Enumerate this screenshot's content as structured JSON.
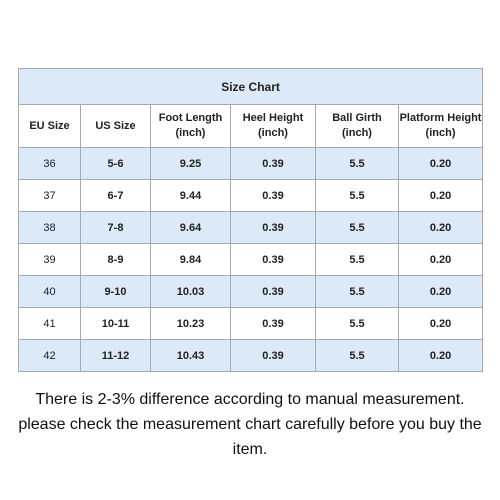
{
  "table": {
    "title": "Size Chart",
    "columns": [
      "EU Size",
      "US Size",
      "Foot Length\n(inch)",
      "Heel Height\n(inch)",
      "Ball Girth\n(inch)",
      "Platform Height\n(inch)"
    ],
    "rows": [
      [
        "36",
        "5-6",
        "9.25",
        "0.39",
        "5.5",
        "0.20"
      ],
      [
        "37",
        "6-7",
        "9.44",
        "0.39",
        "5.5",
        "0.20"
      ],
      [
        "38",
        "7-8",
        "9.64",
        "0.39",
        "5.5",
        "0.20"
      ],
      [
        "39",
        "8-9",
        "9.84",
        "0.39",
        "5.5",
        "0.20"
      ],
      [
        "40",
        "9-10",
        "10.03",
        "0.39",
        "5.5",
        "0.20"
      ],
      [
        "41",
        "10-11",
        "10.23",
        "0.39",
        "5.5",
        "0.20"
      ],
      [
        "42",
        "11-12",
        "10.43",
        "0.39",
        "5.5",
        "0.20"
      ]
    ]
  },
  "notes": [
    "There is 2-3% difference according to manual measurement.",
    "please check the measurement chart carefully before you buy the item."
  ]
}
